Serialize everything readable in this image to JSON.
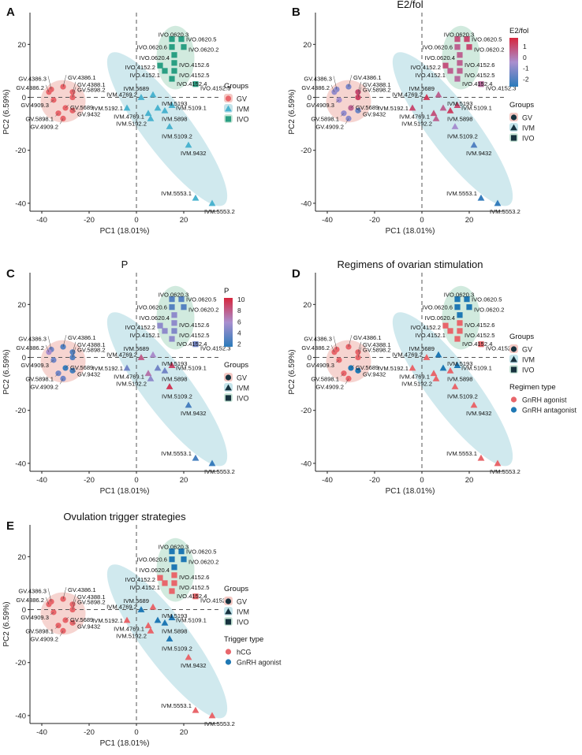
{
  "colors": {
    "gv": "#e8666b",
    "ivm": "#4bb3cf",
    "ivo": "#2a9f83",
    "gv_ellipse": "#f4c9c4",
    "ivm_ellipse": "#c4e4ea",
    "ivo_ellipse": "#c9e6d8",
    "dark_marker": "#17323e",
    "pink_cat": "#e8666b",
    "blue_cat": "#1f78b4",
    "scale_high": "#d7263d",
    "scale_mid": "#a98fcf",
    "scale_low": "#2b7bba"
  },
  "chart_data": [
    {
      "panel": "A",
      "type": "scatter",
      "title": "",
      "xlabel": "PC1 (18.01%)",
      "ylabel": "PC2 (6.59%)",
      "xlim": [
        -45,
        35
      ],
      "ylim": [
        -43,
        32
      ],
      "xticks": [
        "-40",
        "-20",
        "0",
        "20"
      ],
      "yticks": [
        "20",
        "0",
        "-20",
        "-40"
      ],
      "color_by": "group",
      "legend": [
        {
          "title": "Groups",
          "items": [
            {
              "label": "GV",
              "shape": "circle",
              "color": "#e8666b"
            },
            {
              "label": "IVM",
              "shape": "triangle",
              "color": "#4bb3cf"
            },
            {
              "label": "IVO",
              "shape": "square",
              "color": "#2a9f83"
            }
          ]
        }
      ]
    },
    {
      "panel": "B",
      "type": "scatter",
      "title": "E2/fol",
      "xlabel": "PC1 (18.01%)",
      "ylabel": "PC2 (6.59%)",
      "xlim": [
        -45,
        35
      ],
      "ylim": [
        -43,
        32
      ],
      "xticks": [
        "-40",
        "-20",
        "0",
        "20"
      ],
      "yticks": [
        "20",
        "0",
        "-20",
        "-40"
      ],
      "color_by": "e2",
      "colorbar": {
        "title": "E2/fol",
        "min": -2.7,
        "max": 1.8,
        "ticks": [
          "1",
          "0",
          "-1",
          "-2"
        ],
        "tick_values": [
          1,
          0,
          -1,
          -2
        ]
      },
      "legend": [
        {
          "title": "Groups",
          "items": [
            {
              "label": "GV",
              "shape": "circle"
            },
            {
              "label": "IVM",
              "shape": "triangle"
            },
            {
              "label": "IVO",
              "shape": "square"
            }
          ]
        }
      ]
    },
    {
      "panel": "C",
      "type": "scatter",
      "title": "P",
      "xlabel": "PC1 (18.01%)",
      "ylabel": "PC2 (6.59%)",
      "xlim": [
        -45,
        35
      ],
      "ylim": [
        -43,
        32
      ],
      "xticks": [
        "-40",
        "-20",
        "0",
        "20"
      ],
      "yticks": [
        "20",
        "0",
        "-20",
        "-40"
      ],
      "color_by": "p",
      "colorbar": {
        "title": "P",
        "min": 1.5,
        "max": 10.3,
        "ticks": [
          "10",
          "8",
          "6",
          "4",
          "2"
        ],
        "tick_values": [
          10,
          8,
          6,
          4,
          2
        ]
      },
      "legend": [
        {
          "title": "Groups",
          "items": [
            {
              "label": "GV",
              "shape": "circle"
            },
            {
              "label": "IVM",
              "shape": "triangle"
            },
            {
              "label": "IVO",
              "shape": "square"
            }
          ]
        }
      ]
    },
    {
      "panel": "D",
      "type": "scatter",
      "title": "Regimens of ovarian stimulation",
      "xlabel": "PC1 (18.01%)",
      "ylabel": "PC2 (6.59%)",
      "xlim": [
        -45,
        35
      ],
      "ylim": [
        -43,
        32
      ],
      "xticks": [
        "-40",
        "-20",
        "0",
        "20"
      ],
      "yticks": [
        "20",
        "0",
        "-20",
        "-40"
      ],
      "color_by": "regimen",
      "legend": [
        {
          "title": "Groups",
          "items": [
            {
              "label": "GV",
              "shape": "circle"
            },
            {
              "label": "IVM",
              "shape": "triangle"
            },
            {
              "label": "IVO",
              "shape": "square"
            }
          ]
        },
        {
          "title": "Regimen type",
          "items": [
            {
              "label": "GnRH agonist",
              "shape": "circle",
              "color": "#e8666b"
            },
            {
              "label": "GnRH antagonist",
              "shape": "circle",
              "color": "#1f78b4"
            }
          ]
        }
      ]
    },
    {
      "panel": "E",
      "type": "scatter",
      "title": "Ovulation trigger strategies",
      "xlabel": "PC1 (18.01%)",
      "ylabel": "PC2 (6.59%)",
      "xlim": [
        -45,
        35
      ],
      "ylim": [
        -43,
        32
      ],
      "xticks": [
        "-40",
        "-20",
        "0",
        "20"
      ],
      "yticks": [
        "20",
        "0",
        "-20",
        "-40"
      ],
      "color_by": "trigger",
      "legend": [
        {
          "title": "Groups",
          "items": [
            {
              "label": "GV",
              "shape": "circle"
            },
            {
              "label": "IVM",
              "shape": "triangle"
            },
            {
              "label": "IVO",
              "shape": "square"
            }
          ]
        },
        {
          "title": "Trigger type",
          "items": [
            {
              "label": "hCG",
              "shape": "circle",
              "color": "#e8666b"
            },
            {
              "label": "GnRH agonist",
              "shape": "circle",
              "color": "#1f78b4"
            }
          ]
        }
      ]
    }
  ],
  "samples": [
    {
      "label": "GV.4386.3",
      "group": "GV",
      "x": -36,
      "y": 3,
      "e2": -1,
      "p": 4,
      "regimen": "agonist",
      "trigger": "hcg"
    },
    {
      "label": "GV.4386.2",
      "group": "GV",
      "x": -37,
      "y": 2,
      "e2": -0.8,
      "p": 6,
      "regimen": "agonist",
      "trigger": "hcg"
    },
    {
      "label": "GV.4386.1",
      "group": "GV",
      "x": -31,
      "y": 4,
      "e2": -1.2,
      "p": 3,
      "regimen": "agonist",
      "trigger": "hcg"
    },
    {
      "label": "GV.4388.1",
      "group": "GV",
      "x": -27,
      "y": 2,
      "e2": 1,
      "p": 3,
      "regimen": "agonist",
      "trigger": "hcg"
    },
    {
      "label": "GV.4909.3",
      "group": "GV",
      "x": -35,
      "y": -1,
      "e2": -0.5,
      "p": 4,
      "regimen": "agonist",
      "trigger": "hcg"
    },
    {
      "label": "GV.5898.2",
      "group": "GV",
      "x": -27,
      "y": 0,
      "e2": 1.2,
      "p": 3,
      "regimen": "agonist",
      "trigger": "hcg"
    },
    {
      "label": "GV.5689",
      "group": "GV",
      "x": -30,
      "y": -4,
      "e2": 0.5,
      "p": 2,
      "regimen": "antagonist",
      "trigger": "hcg"
    },
    {
      "label": "GV.5898.1",
      "group": "GV",
      "x": -33,
      "y": -6,
      "e2": -0.8,
      "p": 4,
      "regimen": "agonist",
      "trigger": "hcg"
    },
    {
      "label": "GV.9432",
      "group": "GV",
      "x": -27,
      "y": -5,
      "e2": -1.5,
      "p": 2.5,
      "regimen": "antagonist",
      "trigger": "hcg"
    },
    {
      "label": "GV.4909.2",
      "group": "GV",
      "x": -31,
      "y": -8,
      "e2": -1,
      "p": 4,
      "regimen": "agonist",
      "trigger": "hcg"
    },
    {
      "label": "IVM.4769.2",
      "group": "IVM",
      "x": 2,
      "y": 0,
      "e2": 1.3,
      "p": 8,
      "regimen": "agonist",
      "trigger": "gnrh"
    },
    {
      "label": "IVM.5192.1",
      "group": "IVM",
      "x": -4,
      "y": -4,
      "e2": 1,
      "p": 4,
      "regimen": "agonist",
      "trigger": "hcg"
    },
    {
      "label": "IVM.4769.1",
      "group": "IVM",
      "x": 5,
      "y": -6,
      "e2": 0.8,
      "p": 7,
      "regimen": "agonist",
      "trigger": "hcg"
    },
    {
      "label": "IVM.5192.2",
      "group": "IVM",
      "x": 6,
      "y": -8,
      "e2": 0.5,
      "p": 5,
      "regimen": "agonist",
      "trigger": "hcg"
    },
    {
      "label": "IVM.5689",
      "group": "IVM",
      "x": 7,
      "y": 1,
      "e2": 0.5,
      "p": 6,
      "regimen": "antagonist",
      "trigger": "hcg"
    },
    {
      "label": "IVM.5193",
      "group": "IVM",
      "x": 9,
      "y": -4,
      "e2": 0.5,
      "p": 4,
      "regimen": "antagonist",
      "trigger": "gnrh"
    },
    {
      "label": "IVM.5109.1",
      "group": "IVM",
      "x": 15,
      "y": -3,
      "e2": 1,
      "p": 9,
      "regimen": "antagonist",
      "trigger": "gnrh"
    },
    {
      "label": "IVM.5898",
      "group": "IVM",
      "x": 12,
      "y": -5,
      "e2": 1.2,
      "p": 4,
      "regimen": "agonist",
      "trigger": "gnrh"
    },
    {
      "label": "IVM.5109.2",
      "group": "IVM",
      "x": 14,
      "y": -11,
      "e2": -0.5,
      "p": 9.5,
      "regimen": "agonist",
      "trigger": "gnrh"
    },
    {
      "label": "IVM.9432",
      "group": "IVM",
      "x": 22,
      "y": -18,
      "e2": -2,
      "p": 2.5,
      "regimen": "agonist",
      "trigger": "hcg"
    },
    {
      "label": "IVM.5553.1",
      "group": "IVM",
      "x": 25,
      "y": -38,
      "e2": -2.5,
      "p": 2.5,
      "regimen": "agonist",
      "trigger": "hcg"
    },
    {
      "label": "IVM.5553.2",
      "group": "IVM",
      "x": 32,
      "y": -40,
      "e2": -2.5,
      "p": 2,
      "regimen": "agonist",
      "trigger": "hcg"
    },
    {
      "label": "IVO.0620.3",
      "group": "IVO",
      "x": 15,
      "y": 22,
      "e2": 0.8,
      "p": 3,
      "regimen": "antagonist",
      "trigger": "gnrh"
    },
    {
      "label": "IVO.0620.5",
      "group": "IVO",
      "x": 19,
      "y": 22,
      "e2": 1,
      "p": 3,
      "regimen": "antagonist",
      "trigger": "gnrh"
    },
    {
      "label": "IVO.0620.6",
      "group": "IVO",
      "x": 15,
      "y": 19,
      "e2": 0.5,
      "p": 3,
      "regimen": "antagonist",
      "trigger": "gnrh"
    },
    {
      "label": "IVO.0620.2",
      "group": "IVO",
      "x": 20,
      "y": 19,
      "e2": 1,
      "p": 3,
      "regimen": "antagonist",
      "trigger": "gnrh"
    },
    {
      "label": "IVO.0620.4",
      "group": "IVO",
      "x": 16,
      "y": 16,
      "e2": 0.5,
      "p": 5,
      "regimen": "antagonist",
      "trigger": "gnrh"
    },
    {
      "label": "IVO.4152.2",
      "group": "IVO",
      "x": 10,
      "y": 12,
      "e2": 0.8,
      "p": 5,
      "regimen": "agonist",
      "trigger": "hcg"
    },
    {
      "label": "IVO.4152.6",
      "group": "IVO",
      "x": 16,
      "y": 13,
      "e2": 0.5,
      "p": 5,
      "regimen": "agonist",
      "trigger": "hcg"
    },
    {
      "label": "IVO.4152.1",
      "group": "IVO",
      "x": 12,
      "y": 10,
      "e2": 0.5,
      "p": 5,
      "regimen": "agonist",
      "trigger": "hcg"
    },
    {
      "label": "IVO.4152.5",
      "group": "IVO",
      "x": 16,
      "y": 10,
      "e2": 0.5,
      "p": 4.5,
      "regimen": "agonist",
      "trigger": "hcg"
    },
    {
      "label": "IVO.4152.4",
      "group": "IVO",
      "x": 15,
      "y": 7,
      "e2": 0.3,
      "p": 5,
      "regimen": "agonist",
      "trigger": "hcg"
    },
    {
      "label": "IVO.4152.3",
      "group": "IVO",
      "x": 25,
      "y": 5,
      "e2": 0.3,
      "p": 4,
      "regimen": "agonist",
      "trigger": "hcg"
    }
  ]
}
